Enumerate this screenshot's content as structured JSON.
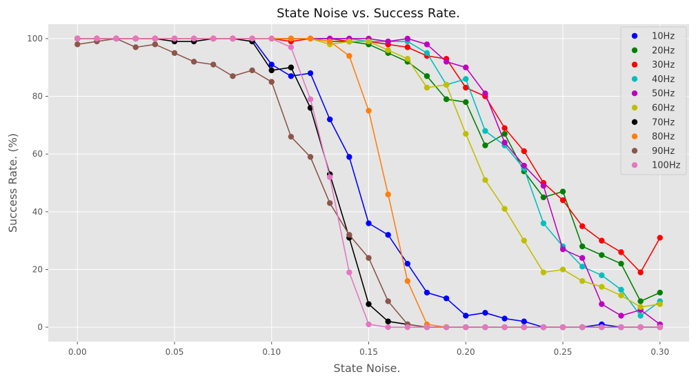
{
  "chart_data": {
    "type": "line",
    "title": "State Noise vs. Success Rate.",
    "xlabel": "State Noise.",
    "ylabel": "Success Rate. (%)",
    "xlim": [
      -0.015,
      0.315
    ],
    "ylim": [
      -5,
      105
    ],
    "xticks": [
      0.0,
      0.05,
      0.1,
      0.15,
      0.2,
      0.25,
      0.3
    ],
    "xtick_labels": [
      "0.00",
      "0.05",
      "0.10",
      "0.15",
      "0.20",
      "0.25",
      "0.30"
    ],
    "yticks": [
      0,
      20,
      40,
      60,
      80,
      100
    ],
    "ytick_labels": [
      "0",
      "20",
      "40",
      "60",
      "80",
      "100"
    ],
    "grid": true,
    "background": "#e5e5e5",
    "legend_position": "top-right",
    "x": [
      0.0,
      0.01,
      0.02,
      0.03,
      0.04,
      0.05,
      0.06,
      0.07,
      0.08,
      0.09,
      0.1,
      0.11,
      0.12,
      0.13,
      0.14,
      0.15,
      0.16,
      0.17,
      0.18,
      0.19,
      0.2,
      0.21,
      0.22,
      0.23,
      0.24,
      0.25,
      0.26,
      0.27,
      0.28,
      0.29,
      0.3
    ],
    "series": [
      {
        "name": "10Hz",
        "color": "#0000ff",
        "values": [
          100,
          100,
          100,
          100,
          100,
          100,
          100,
          100,
          100,
          100,
          91,
          87,
          88,
          72,
          59,
          36,
          32,
          22,
          12,
          10,
          4,
          5,
          3,
          2,
          0,
          0,
          0,
          1,
          0,
          0,
          0
        ]
      },
      {
        "name": "20Hz",
        "color": "#008000",
        "values": [
          100,
          100,
          100,
          100,
          100,
          100,
          100,
          100,
          100,
          100,
          100,
          100,
          100,
          99,
          99,
          98,
          95,
          92,
          87,
          79,
          78,
          63,
          67,
          54,
          45,
          47,
          28,
          25,
          22,
          9,
          12
        ]
      },
      {
        "name": "30Hz",
        "color": "#ff0000",
        "values": [
          100,
          100,
          100,
          100,
          100,
          100,
          100,
          100,
          100,
          100,
          100,
          99,
          100,
          100,
          99,
          99,
          98,
          97,
          94,
          93,
          83,
          80,
          69,
          61,
          50,
          44,
          35,
          30,
          26,
          19,
          31
        ]
      },
      {
        "name": "40Hz",
        "color": "#00bfbf",
        "values": [
          100,
          100,
          100,
          100,
          100,
          100,
          100,
          100,
          100,
          100,
          100,
          100,
          100,
          100,
          100,
          99,
          99,
          99,
          95,
          84,
          86,
          68,
          63,
          55,
          36,
          28,
          21,
          18,
          13,
          4,
          9
        ]
      },
      {
        "name": "50Hz",
        "color": "#bf00bf",
        "values": [
          100,
          100,
          100,
          100,
          100,
          100,
          100,
          100,
          100,
          100,
          100,
          100,
          100,
          100,
          100,
          100,
          99,
          100,
          98,
          92,
          90,
          81,
          64,
          56,
          49,
          27,
          24,
          8,
          4,
          6,
          1
        ]
      },
      {
        "name": "60Hz",
        "color": "#bfbf00",
        "values": [
          100,
          100,
          100,
          100,
          100,
          100,
          100,
          100,
          100,
          100,
          100,
          100,
          100,
          98,
          99,
          99,
          96,
          93,
          83,
          84,
          67,
          51,
          41,
          30,
          19,
          20,
          16,
          14,
          11,
          7,
          8
        ]
      },
      {
        "name": "70Hz",
        "color": "#000000",
        "values": [
          100,
          100,
          100,
          100,
          100,
          99,
          99,
          100,
          100,
          99,
          89,
          90,
          76,
          53,
          31,
          8,
          2,
          1,
          0,
          0,
          0,
          0,
          0,
          0,
          0,
          0,
          0,
          0,
          0,
          0,
          0
        ]
      },
      {
        "name": "80Hz",
        "color": "#ff7f0e",
        "values": [
          100,
          100,
          100,
          100,
          100,
          100,
          100,
          100,
          100,
          100,
          100,
          100,
          100,
          99,
          94,
          75,
          46,
          16,
          1,
          0,
          0,
          0,
          0,
          0,
          0,
          0,
          0,
          0,
          0,
          0,
          0
        ]
      },
      {
        "name": "90Hz",
        "color": "#8c564b",
        "values": [
          98,
          99,
          100,
          97,
          98,
          95,
          92,
          91,
          87,
          89,
          85,
          66,
          59,
          43,
          32,
          24,
          9,
          1,
          0,
          0,
          0,
          0,
          0,
          0,
          0,
          0,
          0,
          0,
          0,
          0,
          0
        ]
      },
      {
        "name": "100Hz",
        "color": "#e377c2",
        "values": [
          100,
          100,
          100,
          100,
          100,
          100,
          100,
          100,
          100,
          100,
          100,
          97,
          79,
          52,
          19,
          1,
          0,
          0,
          0,
          0,
          0,
          0,
          0,
          0,
          0,
          0,
          0,
          0,
          0,
          0,
          0
        ]
      }
    ]
  }
}
